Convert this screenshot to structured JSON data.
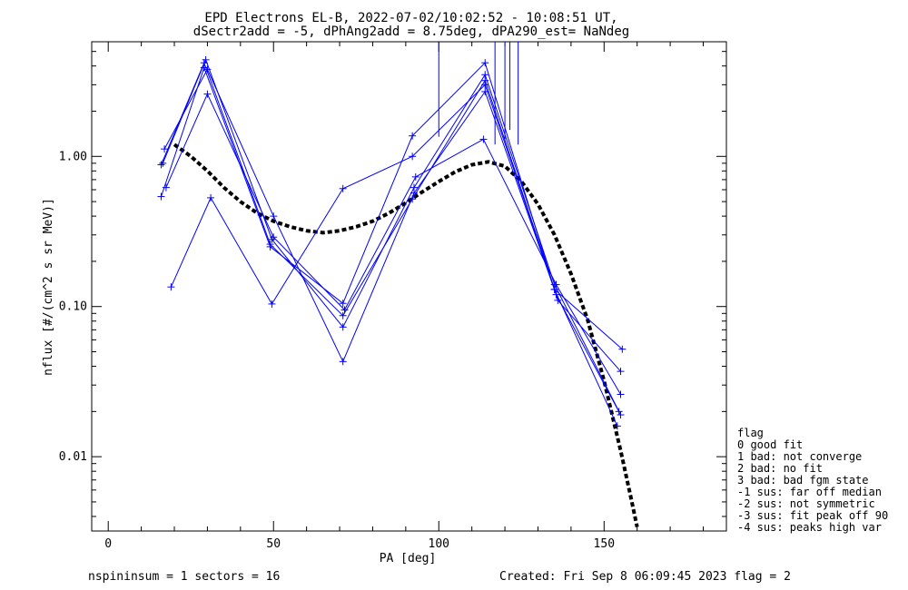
{
  "title_line1": "EPD Electrons EL-B, 2022-07-02/10:02:52 - 10:08:51 UT,",
  "title_line2": "dSectr2add = -5, dPhAng2add = 8.75deg, dPA290_est=   NaNdeg",
  "footer_left": "nspininsum =  1  sectors = 16",
  "footer_right": "Created: Fri Sep  8 06:09:45 2023   flag = 2",
  "legend": {
    "title": "flag",
    "entries": [
      " 0 good fit",
      " 1 bad: not converge",
      " 2 bad: no fit",
      " 3 bad: bad fgm state",
      "-1 sus: far off median",
      "-2 sus: not symmetric",
      "-3 sus: fit peak off 90",
      "-4 sus: peaks high var"
    ]
  },
  "chart_data": {
    "type": "line",
    "xlabel": "PA [deg]",
    "ylabel": "nflux [#/(cm^2 s sr MeV)]",
    "xlim": [
      -5,
      187
    ],
    "ylim": [
      0.0032,
      5.8
    ],
    "yscale": "log",
    "x_ticks": [
      0,
      50,
      100,
      150
    ],
    "x_tick_labels": [
      "0",
      "50",
      "100",
      "150"
    ],
    "y_ticks": [
      0.01,
      0.1,
      1.0
    ],
    "y_tick_labels": [
      "0.01",
      "0.10",
      "1.00"
    ],
    "series_color": "#0000ff",
    "fit_color": "#000000",
    "series": [
      {
        "x": [
          16,
          29,
          49,
          71,
          92,
          114,
          135,
          154
        ],
        "y": [
          0.88,
          4.2,
          0.26,
          0.087,
          0.52,
          3.2,
          0.13,
          0.016
        ]
      },
      {
        "x": [
          16.5,
          29.5,
          49.5,
          71,
          92.5,
          114,
          135,
          154.5
        ],
        "y": [
          0.9,
          4.4,
          0.28,
          0.073,
          0.62,
          3.5,
          0.14,
          0.02
        ]
      },
      {
        "x": [
          17,
          30,
          50,
          71,
          92.5,
          114,
          135.5,
          155
        ],
        "y": [
          1.12,
          3.8,
          0.4,
          0.043,
          0.57,
          2.7,
          0.12,
          0.019
        ]
      },
      {
        "x": [
          17.5,
          30,
          50,
          71.5,
          93,
          113.5,
          135.5,
          155
        ],
        "y": [
          0.62,
          2.6,
          0.29,
          0.095,
          0.73,
          1.3,
          0.14,
          0.026
        ]
      },
      {
        "x": [
          16,
          29,
          49,
          71,
          92,
          114,
          136,
          155
        ],
        "y": [
          0.54,
          3.9,
          0.25,
          0.105,
          1.37,
          4.2,
          0.11,
          0.037
        ]
      },
      {
        "x": [
          19,
          31,
          49.5,
          71,
          92,
          114,
          135,
          155.5
        ],
        "y": [
          0.135,
          0.53,
          0.104,
          0.61,
          1.0,
          3.0,
          0.13,
          0.052
        ]
      }
    ],
    "spikes": [
      {
        "x": 100,
        "y_top": 5.8,
        "y_bottom": 1.35
      },
      {
        "x": 117,
        "y_top": 5.8,
        "y_bottom": 1.2
      },
      {
        "x": 120,
        "y_top": 5.8,
        "y_bottom": 1.3
      },
      {
        "x": 121.5,
        "y_top": 5.8,
        "y_bottom": 1.5
      },
      {
        "x": 124,
        "y_top": 5.8,
        "y_bottom": 1.2
      }
    ],
    "fit_curve": {
      "x": [
        20,
        25,
        30,
        35,
        40,
        45,
        50,
        55,
        60,
        65,
        70,
        75,
        80,
        85,
        90,
        95,
        100,
        105,
        110,
        115,
        120,
        125,
        130,
        135,
        140,
        145,
        150,
        155,
        158,
        160
      ],
      "y": [
        1.2,
        1.0,
        0.8,
        0.62,
        0.5,
        0.42,
        0.37,
        0.34,
        0.32,
        0.31,
        0.32,
        0.34,
        0.37,
        0.42,
        0.49,
        0.58,
        0.68,
        0.79,
        0.88,
        0.92,
        0.86,
        0.68,
        0.48,
        0.3,
        0.165,
        0.082,
        0.032,
        0.011,
        0.0055,
        0.0034
      ]
    }
  }
}
